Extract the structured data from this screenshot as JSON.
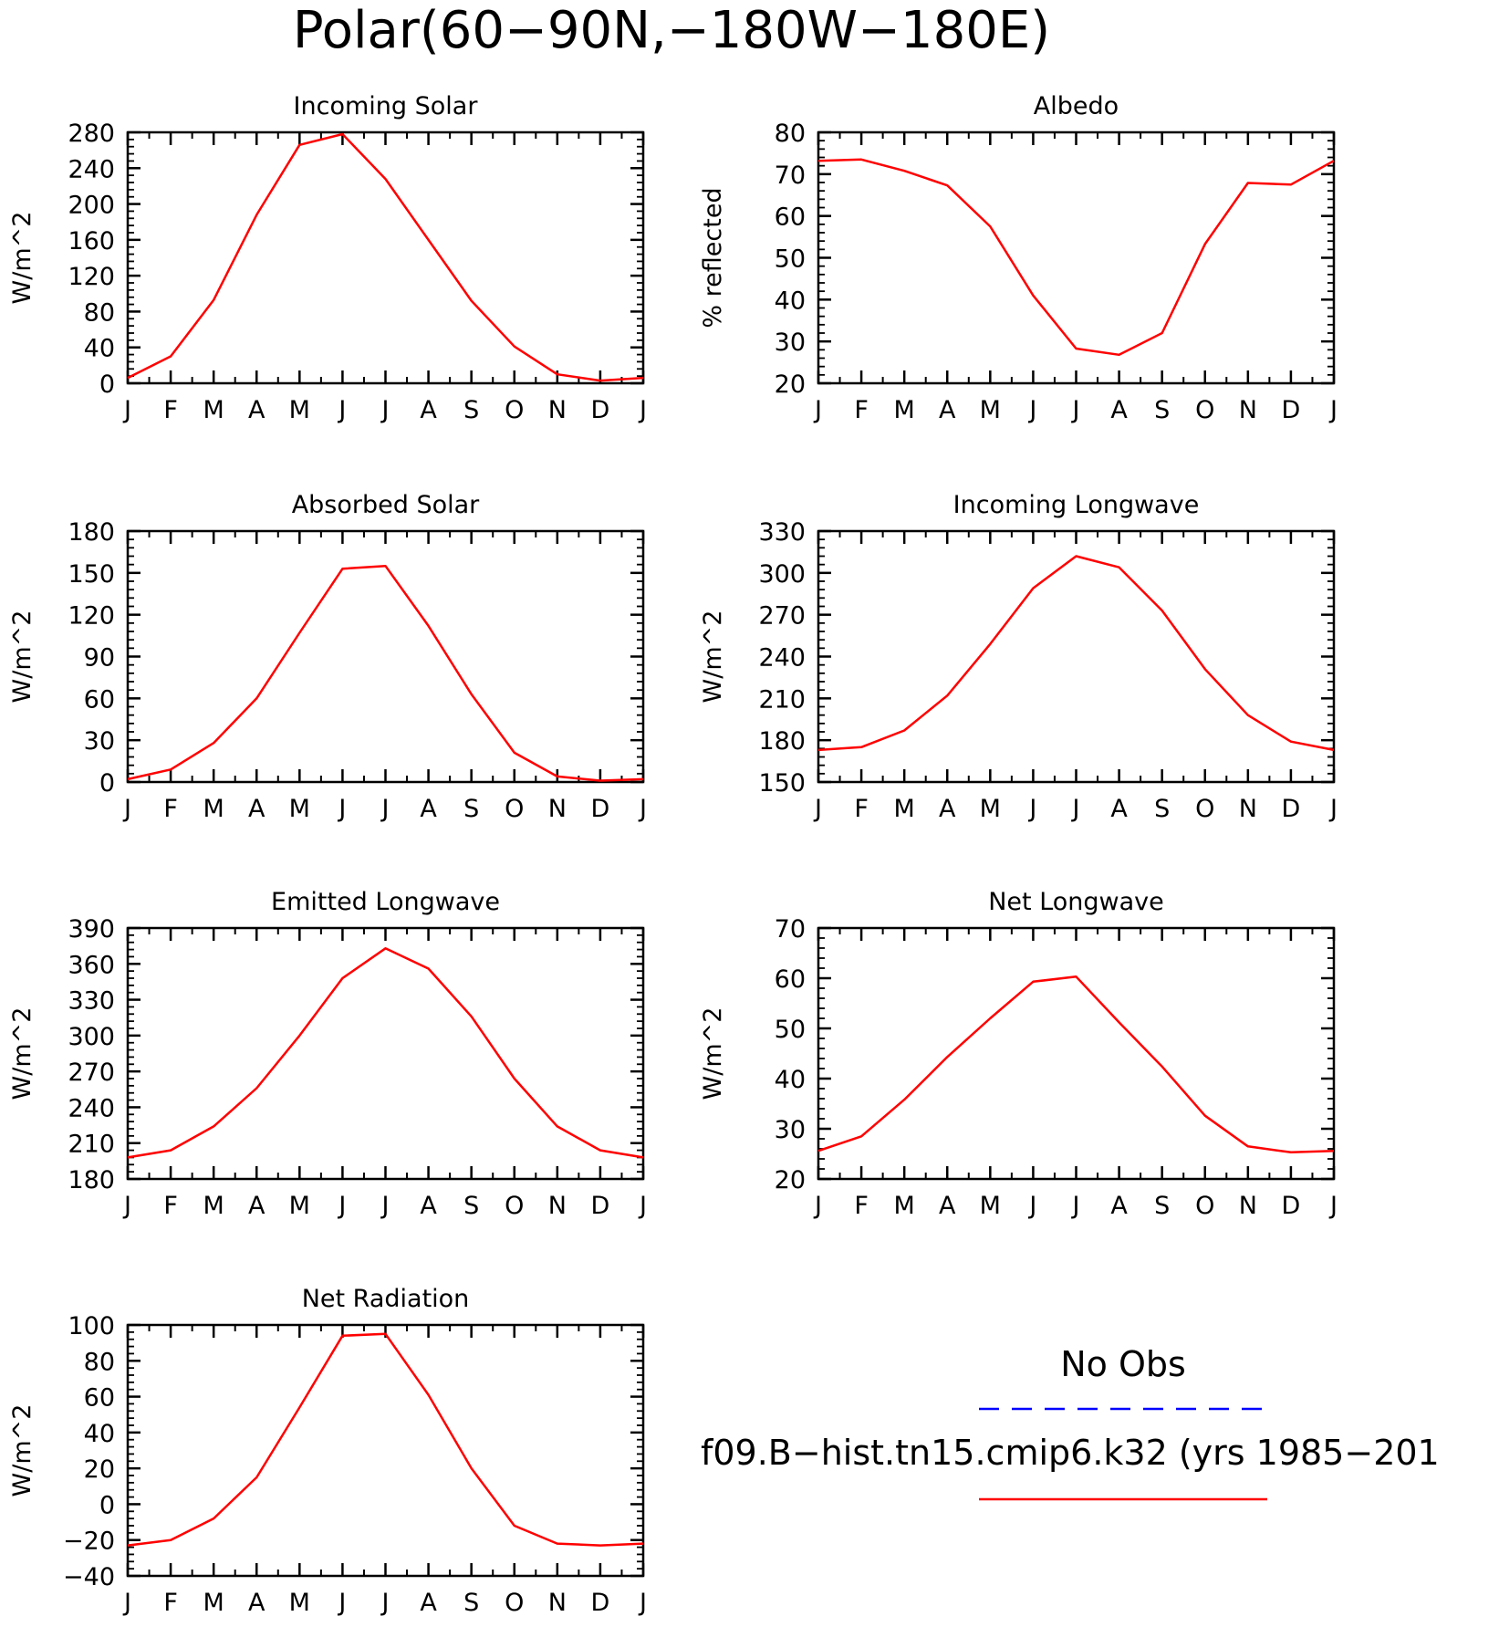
{
  "figure": {
    "title": "Polar(60−90N,−180W−180E)"
  },
  "legend": {
    "entries": [
      {
        "label": "No Obs",
        "color": "#0000ff",
        "dash": true
      },
      {
        "label": "f09.B−hist.tn15.cmip6.k32 (yrs 1985−201",
        "color": "#ff0000",
        "dash": false
      }
    ]
  },
  "chart_data": [
    {
      "type": "line",
      "title": "Incoming Solar",
      "ylabel": "W/m^2",
      "xlabel": "",
      "categories": [
        "J",
        "F",
        "M",
        "A",
        "M",
        "J",
        "J",
        "A",
        "S",
        "O",
        "N",
        "D",
        "J"
      ],
      "yticks": [
        0,
        40,
        80,
        120,
        160,
        200,
        240,
        280
      ],
      "ylim": [
        0,
        280
      ],
      "series": [
        {
          "color": "#ff0000",
          "values": [
            6,
            30,
            93,
            188,
            266,
            278,
            228,
            160,
            92,
            41,
            10,
            3,
            6
          ]
        }
      ]
    },
    {
      "type": "line",
      "title": "Albedo",
      "ylabel": "% reflected",
      "xlabel": "",
      "categories": [
        "J",
        "F",
        "M",
        "A",
        "M",
        "J",
        "J",
        "A",
        "S",
        "O",
        "N",
        "D",
        "J"
      ],
      "yticks": [
        20,
        30,
        40,
        50,
        60,
        70,
        80
      ],
      "ylim": [
        20,
        80
      ],
      "series": [
        {
          "color": "#ff0000",
          "values": [
            73.2,
            73.5,
            70.8,
            67.3,
            57.5,
            41,
            28.3,
            26.8,
            32,
            53.3,
            67.9,
            67.5,
            73.2
          ]
        }
      ]
    },
    {
      "type": "line",
      "title": "Absorbed Solar",
      "ylabel": "W/m^2",
      "xlabel": "",
      "categories": [
        "J",
        "F",
        "M",
        "A",
        "M",
        "J",
        "J",
        "A",
        "S",
        "O",
        "N",
        "D",
        "J"
      ],
      "yticks": [
        0,
        30,
        60,
        90,
        120,
        150,
        180
      ],
      "ylim": [
        0,
        180
      ],
      "series": [
        {
          "color": "#ff0000",
          "values": [
            2,
            9,
            28,
            60,
            107,
            153,
            155,
            112,
            63,
            21,
            4,
            1,
            2
          ]
        }
      ]
    },
    {
      "type": "line",
      "title": "Incoming Longwave",
      "ylabel": "W/m^2",
      "xlabel": "",
      "categories": [
        "J",
        "F",
        "M",
        "A",
        "M",
        "J",
        "J",
        "A",
        "S",
        "O",
        "N",
        "D",
        "J"
      ],
      "yticks": [
        150,
        180,
        210,
        240,
        270,
        300,
        330
      ],
      "ylim": [
        150,
        330
      ],
      "series": [
        {
          "color": "#ff0000",
          "values": [
            173,
            175,
            187,
            212,
            249,
            289,
            312,
            304,
            273,
            231,
            198,
            179,
            173
          ]
        }
      ]
    },
    {
      "type": "line",
      "title": "Emitted Longwave",
      "ylabel": "W/m^2",
      "xlabel": "",
      "categories": [
        "J",
        "F",
        "M",
        "A",
        "M",
        "J",
        "J",
        "A",
        "S",
        "O",
        "N",
        "D",
        "J"
      ],
      "yticks": [
        180,
        210,
        240,
        270,
        300,
        330,
        360,
        390
      ],
      "ylim": [
        180,
        390
      ],
      "series": [
        {
          "color": "#ff0000",
          "values": [
            198,
            204,
            224,
            256,
            300,
            348,
            373,
            356,
            316,
            264,
            224,
            204,
            198
          ]
        }
      ]
    },
    {
      "type": "line",
      "title": "Net Longwave",
      "ylabel": "W/m^2",
      "xlabel": "",
      "categories": [
        "J",
        "F",
        "M",
        "A",
        "M",
        "J",
        "J",
        "A",
        "S",
        "O",
        "N",
        "D",
        "J"
      ],
      "yticks": [
        20,
        30,
        40,
        50,
        60,
        70
      ],
      "ylim": [
        20,
        70
      ],
      "series": [
        {
          "color": "#ff0000",
          "values": [
            25.6,
            28.5,
            35.8,
            44.3,
            52,
            59.3,
            60.3,
            51.2,
            42.4,
            32.6,
            26.5,
            25.3,
            25.6
          ]
        }
      ]
    },
    {
      "type": "line",
      "title": "Net Radiation",
      "ylabel": "W/m^2",
      "xlabel": "",
      "categories": [
        "J",
        "F",
        "M",
        "A",
        "M",
        "J",
        "J",
        "A",
        "S",
        "O",
        "N",
        "D",
        "J"
      ],
      "yticks": [
        -40,
        -20,
        0,
        20,
        40,
        60,
        80,
        100
      ],
      "ylim": [
        -40,
        100
      ],
      "series": [
        {
          "color": "#ff0000",
          "values": [
            -23,
            -20,
            -8,
            15,
            54,
            94,
            95,
            61,
            20,
            -12,
            -22,
            -23,
            -22
          ]
        }
      ]
    }
  ]
}
